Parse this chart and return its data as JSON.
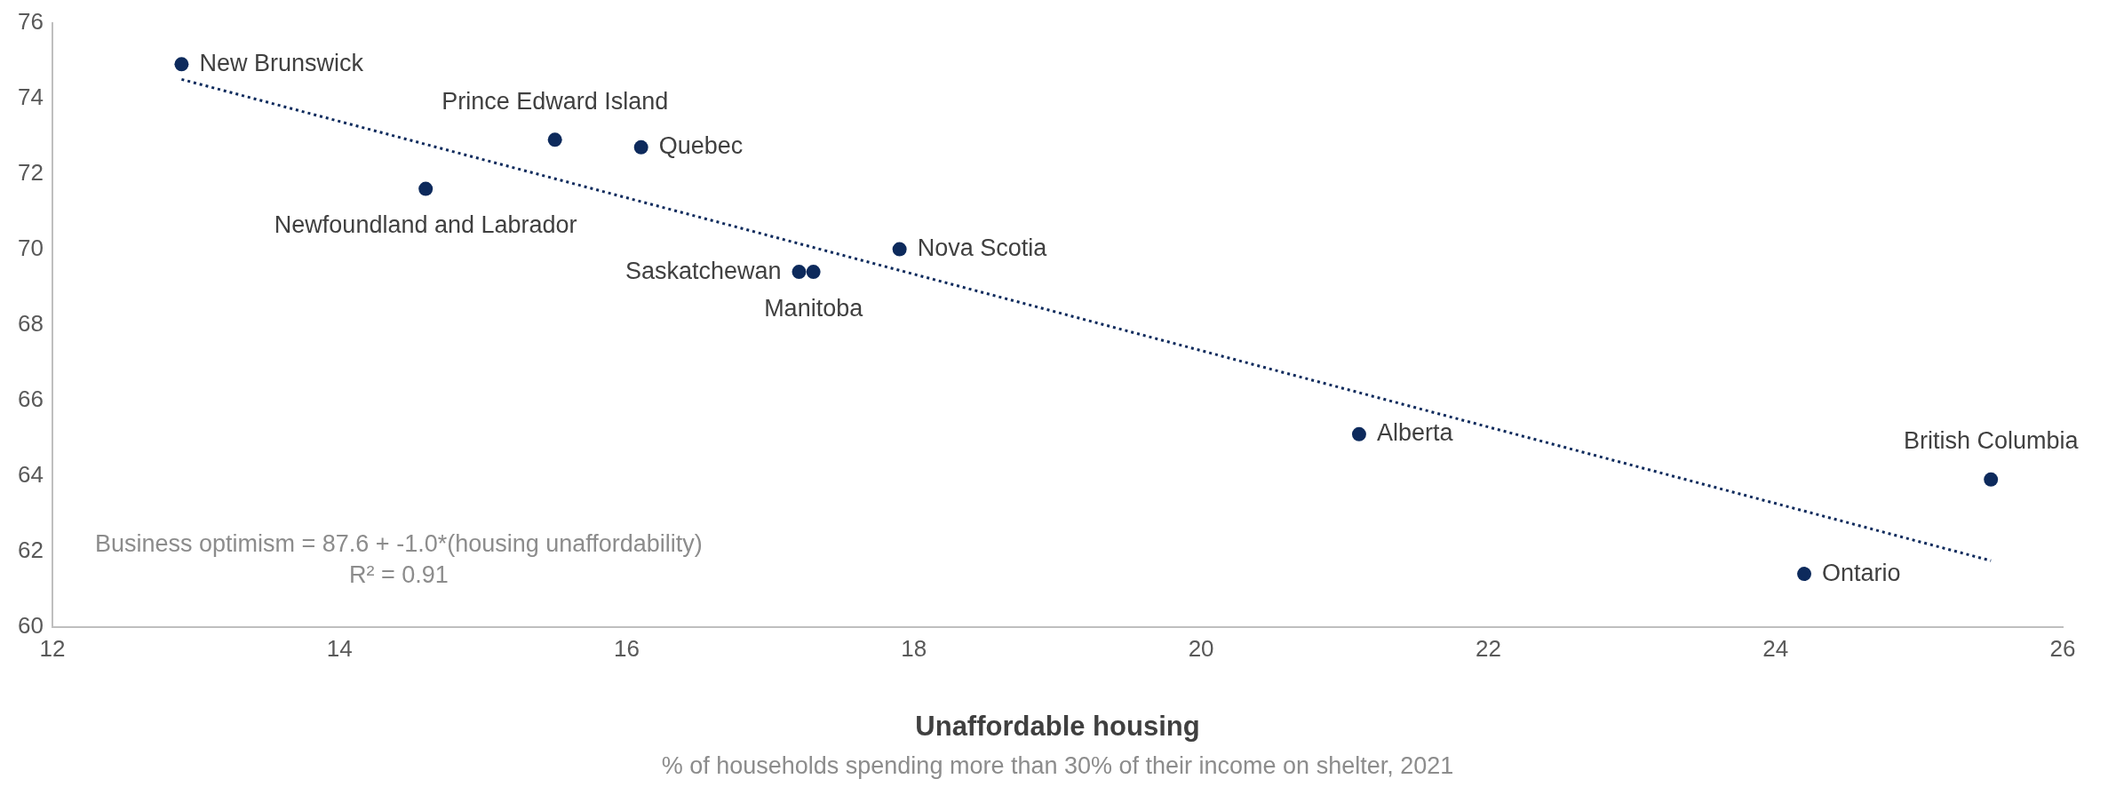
{
  "chart_data": {
    "type": "scatter",
    "xlabel": "Unaffordable housing",
    "xlim": [
      12,
      26
    ],
    "xticks": [
      12,
      14,
      16,
      18,
      20,
      22,
      24,
      26
    ],
    "ylim": [
      60,
      76
    ],
    "yticks": [
      60,
      62,
      64,
      66,
      68,
      70,
      72,
      74,
      76
    ],
    "grid": false,
    "legend": false,
    "marker": "circle",
    "series": [
      {
        "color": "#0d2a5c",
        "x": [
          12.9,
          15.5,
          16.1,
          14.6,
          17.9,
          17.2,
          17.3,
          21.1,
          25.5,
          24.2
        ],
        "values": [
          74.9,
          72.9,
          72.7,
          71.6,
          70.0,
          69.4,
          69.4,
          65.1,
          63.9,
          61.4
        ]
      },
      {
        "type": "line",
        "color": "#0d2a5c",
        "line_style": "dotted",
        "marker": "none",
        "x": [
          12.9,
          25.5
        ],
        "values": [
          74.5,
          61.75
        ]
      }
    ],
    "annotations": [
      {
        "text": "New Brunswick",
        "x": 12.9,
        "y": 74.9
      },
      {
        "text": "Prince Edward Island",
        "x": 15.5,
        "y": 72.9
      },
      {
        "text": "Quebec",
        "x": 16.1,
        "y": 72.7
      },
      {
        "text": "Newfoundland and Labrador",
        "x": 14.6,
        "y": 71.6
      },
      {
        "text": "Nova Scotia",
        "x": 17.9,
        "y": 70.0
      },
      {
        "text": "Saskatchewan",
        "x": 17.2,
        "y": 69.4
      },
      {
        "text": "Manitoba",
        "x": 17.3,
        "y": 69.4
      },
      {
        "text": "Alberta",
        "x": 21.1,
        "y": 65.1
      },
      {
        "text": "British Columbia",
        "x": 25.5,
        "y": 63.9
      },
      {
        "text": "Ontario",
        "x": 24.2,
        "y": 61.4
      },
      "Business optimism = 87.6 + -1.0*(housing unaffordability)",
      "R² = 0.91",
      "% of households spending more than 30% of their income on shelter, 2021"
    ]
  }
}
